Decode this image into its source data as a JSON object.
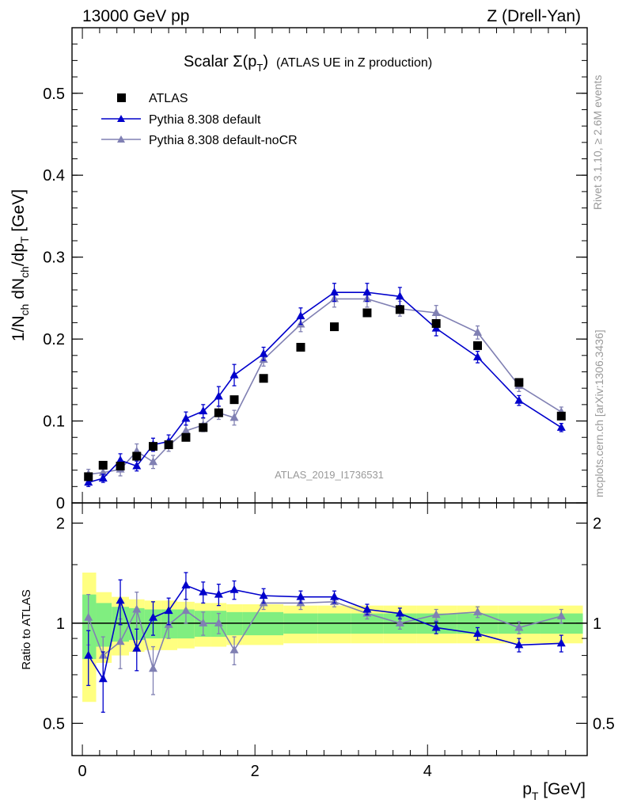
{
  "header": {
    "left": "13000 GeV pp",
    "right": "Z (Drell-Yan)"
  },
  "side_labels": {
    "rivet": "Rivet 3.1.10, ≥ 2.6M events",
    "mcplots": "mcplots.cern.ch [arXiv:1306.3436]"
  },
  "watermark": "ATLAS_2019_I1736531",
  "colors": {
    "atlas": "#000000",
    "default": "#0000cc",
    "nocr": "#8080b3",
    "band_inner": "#80ee80",
    "band_outer": "#ffff80"
  },
  "chart_data": [
    {
      "type": "scatter",
      "title_main": "Scalar Σ(p",
      "title_sub": "T",
      "title_close": ")",
      "title_extra": "(ATLAS UE in Z production)",
      "ylabel": "1/N_ch dN_ch/dp_T [GeV]",
      "ylim": [
        0,
        0.58
      ],
      "yticks": [
        "0",
        "0.1",
        "0.2",
        "0.3",
        "0.4",
        "0.5"
      ],
      "ytick_values": [
        0,
        0.1,
        0.2,
        0.3,
        0.4,
        0.5
      ],
      "legend_position": "top-left",
      "x": [
        0.07,
        0.24,
        0.44,
        0.63,
        0.82,
        1.0,
        1.2,
        1.4,
        1.58,
        1.76,
        2.1,
        2.53,
        2.92,
        3.3,
        3.68,
        4.1,
        4.58,
        5.06,
        5.55
      ],
      "series": [
        {
          "name": "ATLAS",
          "marker": "square",
          "values": [
            0.032,
            0.046,
            0.045,
            0.057,
            0.069,
            0.071,
            0.08,
            0.092,
            0.11,
            0.126,
            0.152,
            0.19,
            0.215,
            0.232,
            0.236,
            0.219,
            0.192,
            0.147,
            0.106
          ],
          "errors": [
            0.002,
            0.002,
            0.002,
            0.003,
            0.003,
            0.003,
            0.004,
            0.004,
            0.004,
            0.004,
            0.004,
            0.004,
            0.004,
            0.004,
            0.004,
            0.004,
            0.004,
            0.004,
            0.004
          ]
        },
        {
          "name": "Pythia 8.308 default",
          "marker": "triangle",
          "values": [
            0.025,
            0.03,
            0.052,
            0.045,
            0.071,
            0.075,
            0.103,
            0.112,
            0.13,
            0.156,
            0.182,
            0.228,
            0.257,
            0.257,
            0.252,
            0.213,
            0.178,
            0.125,
            0.092
          ],
          "errors": [
            0.005,
            0.005,
            0.008,
            0.006,
            0.008,
            0.008,
            0.008,
            0.008,
            0.012,
            0.013,
            0.008,
            0.01,
            0.011,
            0.011,
            0.011,
            0.009,
            0.007,
            0.006,
            0.005
          ]
        },
        {
          "name": "Pythia 8.308 default-noCR",
          "marker": "triangle",
          "values": [
            0.035,
            0.037,
            0.041,
            0.063,
            0.05,
            0.07,
            0.088,
            0.095,
            0.11,
            0.104,
            0.175,
            0.218,
            0.249,
            0.249,
            0.237,
            0.232,
            0.208,
            0.143,
            0.111
          ],
          "errors": [
            0.006,
            0.005,
            0.008,
            0.009,
            0.008,
            0.007,
            0.007,
            0.008,
            0.008,
            0.009,
            0.008,
            0.009,
            0.01,
            0.01,
            0.009,
            0.009,
            0.008,
            0.007,
            0.006
          ]
        }
      ]
    },
    {
      "type": "scatter",
      "ylabel": "Ratio to ATLAS",
      "xlabel": "p_T [GeV]",
      "xlim": [
        -0.12,
        5.85
      ],
      "ylim": [
        0.4,
        2.3
      ],
      "ytick_values": [
        0.5,
        1,
        2
      ],
      "yticks": [
        "0.5",
        "1",
        "2"
      ],
      "xtick_values": [
        0,
        2,
        4
      ],
      "xticks": [
        "0",
        "2",
        "4"
      ],
      "reference": 1,
      "band_edges": [
        0,
        0.16,
        0.34,
        0.54,
        0.72,
        0.91,
        1.1,
        1.3,
        1.49,
        1.67,
        1.86,
        2.33,
        2.73,
        3.11,
        3.49,
        3.87,
        4.34,
        4.82,
        5.3,
        5.8
      ],
      "band_inner": [
        0.22,
        0.15,
        0.12,
        0.11,
        0.1,
        0.1,
        0.1,
        0.09,
        0.09,
        0.08,
        0.08,
        0.07,
        0.07,
        0.07,
        0.07,
        0.07,
        0.07,
        0.07,
        0.07
      ],
      "band_outer": [
        0.42,
        0.24,
        0.2,
        0.18,
        0.17,
        0.17,
        0.16,
        0.15,
        0.15,
        0.14,
        0.14,
        0.13,
        0.13,
        0.13,
        0.13,
        0.13,
        0.13,
        0.13,
        0.13
      ],
      "series": [
        {
          "name": "Pythia 8.308 default",
          "values": [
            0.8,
            0.68,
            1.17,
            0.84,
            1.04,
            1.09,
            1.3,
            1.24,
            1.22,
            1.26,
            1.21,
            1.2,
            1.2,
            1.1,
            1.07,
            0.97,
            0.93,
            0.86,
            0.87
          ],
          "errors": [
            0.15,
            0.14,
            0.18,
            0.12,
            0.12,
            0.1,
            0.12,
            0.09,
            0.09,
            0.08,
            0.06,
            0.05,
            0.05,
            0.04,
            0.04,
            0.04,
            0.04,
            0.04,
            0.05
          ]
        },
        {
          "name": "Pythia 8.308 default-noCR",
          "values": [
            1.04,
            0.8,
            0.88,
            1.1,
            0.73,
            0.99,
            1.09,
            1.0,
            1.0,
            0.83,
            1.15,
            1.15,
            1.16,
            1.07,
            1.0,
            1.06,
            1.08,
            0.97,
            1.05
          ],
          "errors": [
            0.18,
            0.11,
            0.15,
            0.14,
            0.12,
            0.09,
            0.09,
            0.08,
            0.07,
            0.08,
            0.05,
            0.05,
            0.04,
            0.04,
            0.04,
            0.04,
            0.04,
            0.04,
            0.05
          ]
        }
      ]
    }
  ]
}
